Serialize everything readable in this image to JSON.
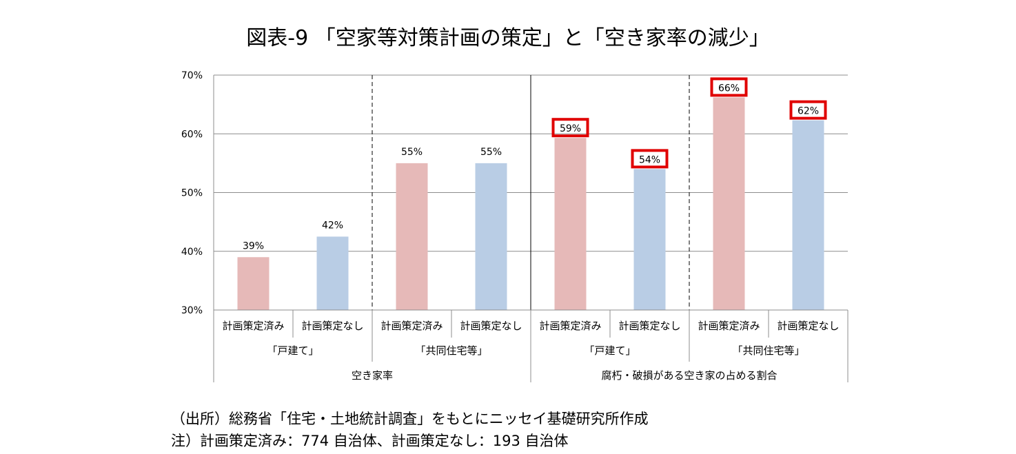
{
  "title": "図表-9 「空家等対策計画の策定」と「空き家率の減少」",
  "chart_data": {
    "type": "bar",
    "y_ticks": [
      "70%",
      "60%",
      "50%",
      "40%",
      "30%"
    ],
    "ylim": [
      30,
      70
    ],
    "bars": [
      {
        "category": "計画策定済み",
        "subgroup": "「戸建て」",
        "group": "空き家率",
        "value": 39,
        "label": "39%",
        "color": "#e6b9b8",
        "highlight": false
      },
      {
        "category": "計画策定なし",
        "subgroup": "「戸建て」",
        "group": "空き家率",
        "value": 42.5,
        "label": "42%",
        "color": "#b9cde5",
        "highlight": false
      },
      {
        "category": "計画策定済み",
        "subgroup": "「共同住宅等」",
        "group": "空き家率",
        "value": 55,
        "label": "55%",
        "color": "#e6b9b8",
        "highlight": false
      },
      {
        "category": "計画策定なし",
        "subgroup": "「共同住宅等」",
        "group": "空き家率",
        "value": 55,
        "label": "55%",
        "color": "#b9cde5",
        "highlight": false
      },
      {
        "category": "計画策定済み",
        "subgroup": "「戸建て」",
        "group": "腐朽・破損がある空き家の占める割合",
        "value": 59.3,
        "label": "59%",
        "color": "#e6b9b8",
        "highlight": true
      },
      {
        "category": "計画策定なし",
        "subgroup": "「戸建て」",
        "group": "腐朽・破損がある空き家の占める割合",
        "value": 54,
        "label": "54%",
        "color": "#b9cde5",
        "highlight": true
      },
      {
        "category": "計画策定済み",
        "subgroup": "「共同住宅等」",
        "group": "腐朽・破損がある空き家の占める割合",
        "value": 66.2,
        "label": "66%",
        "color": "#e6b9b8",
        "highlight": true
      },
      {
        "category": "計画策定なし",
        "subgroup": "「共同住宅等」",
        "group": "腐朽・破損がある空き家の占める割合",
        "value": 62.3,
        "label": "62%",
        "color": "#b9cde5",
        "highlight": true
      }
    ],
    "subgroups": [
      "「戸建て」",
      "「共同住宅等」",
      "「戸建て」",
      "「共同住宅等」"
    ],
    "groups": [
      "空き家率",
      "腐朽・破損がある空き家の占める割合"
    ],
    "highlight_color": "#e00000",
    "grid": true
  },
  "source": "（出所）総務省「住宅・土地統計調査」をもとにニッセイ基礎研究所作成",
  "footnote": "注）計画策定済み：774 自治体、計画策定なし：193 自治体"
}
